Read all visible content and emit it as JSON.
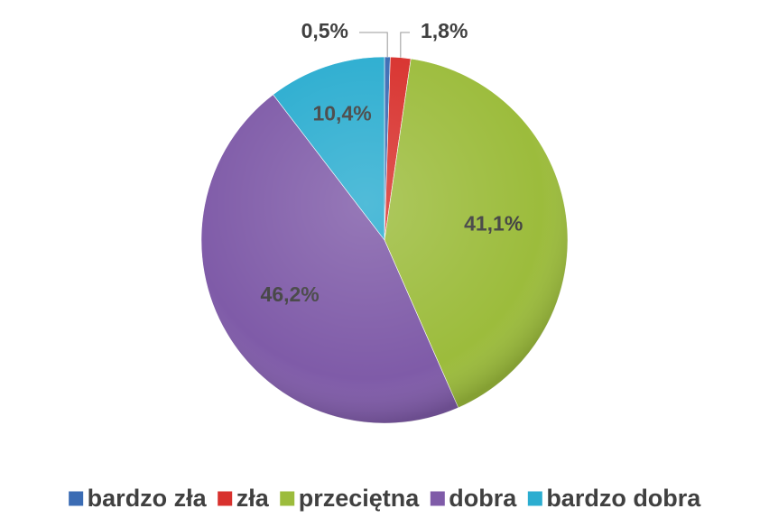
{
  "chart_data": {
    "type": "pie",
    "categories": [
      "bardzo zła",
      "zła",
      "przeciętna",
      "dobra",
      "bardzo dobra"
    ],
    "values": [
      0.5,
      1.8,
      41.1,
      46.2,
      10.4
    ],
    "value_labels": [
      "0,5%",
      "1,8%",
      "41,1%",
      "46,2%",
      "10,4%"
    ],
    "colors": [
      "#3b6cb4",
      "#d8312d",
      "#9cbc3c",
      "#7f5ba8",
      "#2badd0"
    ],
    "legend": "bottom"
  }
}
